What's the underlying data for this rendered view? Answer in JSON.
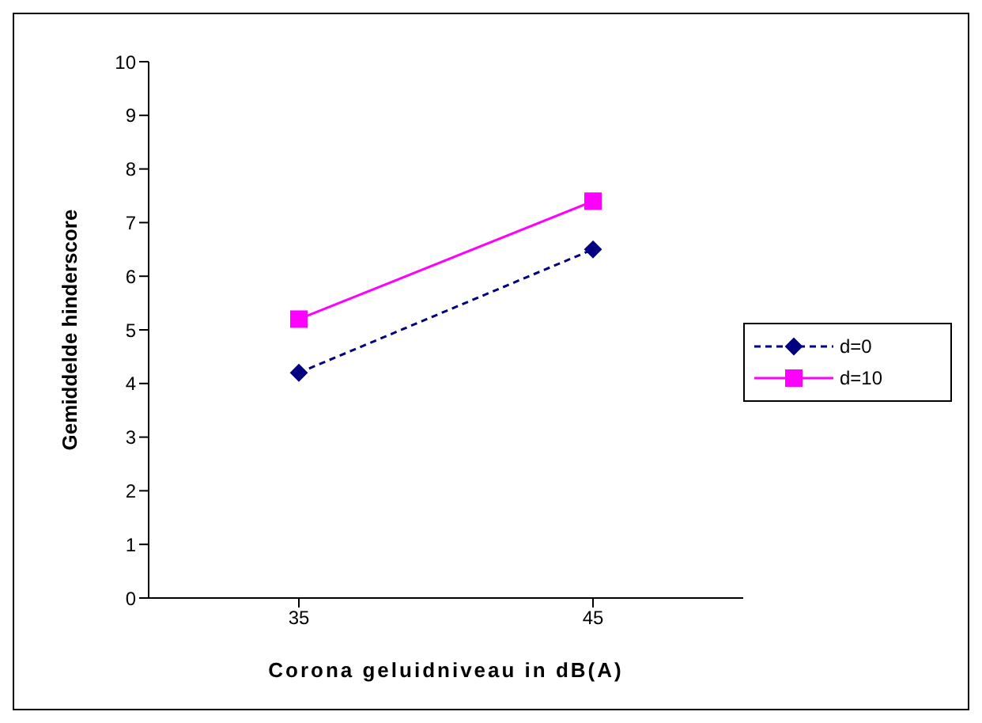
{
  "chart_data": {
    "type": "line",
    "xlabel": "Corona geluidniveau in dB(A)",
    "ylabel": "Gemiddelde hinderscore",
    "categories": [
      "35",
      "45"
    ],
    "series": [
      {
        "name": "d=0",
        "color": "#000080",
        "values": [
          4.2,
          6.5
        ],
        "marker": "diamond",
        "line_style": "dashed"
      },
      {
        "name": "d=10",
        "color": "#ff00ff",
        "values": [
          5.2,
          7.4
        ],
        "marker": "square",
        "line_style": "solid"
      }
    ],
    "ylim": [
      0,
      10
    ],
    "yticks": [
      0,
      1,
      2,
      3,
      4,
      5,
      6,
      7,
      8,
      9,
      10
    ],
    "grid": false,
    "legend": "right"
  }
}
